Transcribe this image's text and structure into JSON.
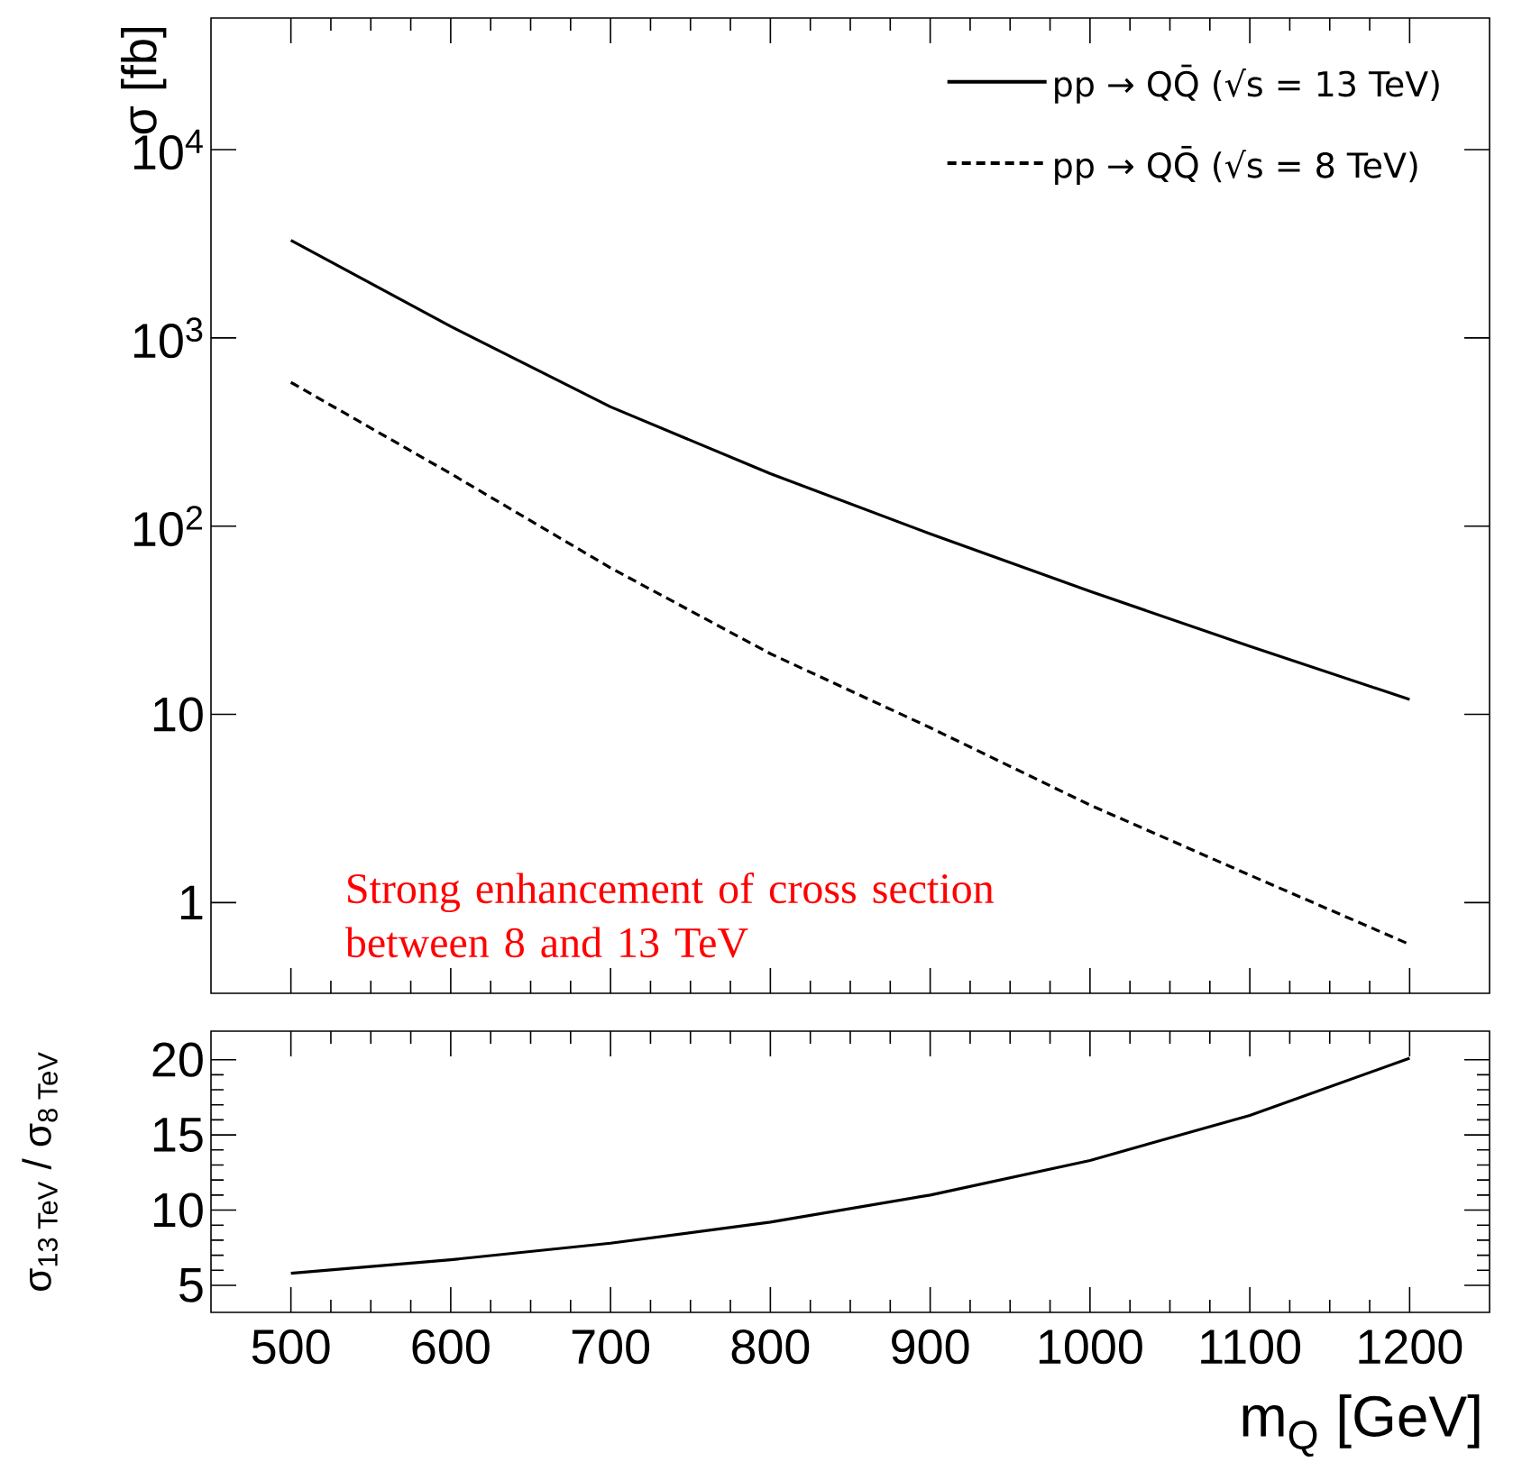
{
  "chart_data": [
    {
      "type": "line",
      "ylabel": "σ [fb]",
      "log": true,
      "x": [
        500,
        600,
        700,
        800,
        900,
        1000,
        1100,
        1200
      ],
      "xlim": [
        450,
        1250
      ],
      "xticks": [
        500,
        600,
        700,
        800,
        900,
        1000,
        1100,
        1200
      ],
      "ylim": [
        0.33,
        50000
      ],
      "yticks": [
        1,
        10,
        {
          "value": 100,
          "label": "10$^{2}$"
        },
        {
          "value": 1000,
          "label": "10$^{3}$"
        },
        {
          "value": 10000,
          "label": "10$^{4}$"
        }
      ],
      "tick_labels": "y",
      "legend": "top right",
      "series": [
        {
          "name": "pp → QQ̄ (√s = 13 TeV)",
          "color": "#000000",
          "line_style": "solid",
          "values": [
            3300,
            1150,
            430,
            190,
            91,
            45,
            23,
            12
          ]
        },
        {
          "name": "pp → QQ̄ (√s = 8 TeV)",
          "color": "#000000",
          "line_style": "dashed",
          "values": [
            580,
            190,
            60,
            21,
            8.5,
            3.3,
            1.4,
            0.6
          ]
        }
      ],
      "annotations": [
        "Strong enhancement of cross section between 8 and  13 TeV"
      ]
    },
    {
      "type": "line",
      "xlabel": "m$_{Q}$ [GeV]",
      "ylabel": "σ$_{13 TeV}$ / σ$_{8 TeV}$",
      "x": [
        500,
        600,
        700,
        800,
        900,
        1000,
        1100,
        1200
      ],
      "xlim": [
        450,
        1250
      ],
      "xticks": [
        500,
        600,
        700,
        800,
        900,
        1000,
        1100,
        1200
      ],
      "ylim": [
        3.2,
        21.9
      ],
      "yticks": [
        5,
        10,
        15,
        20
      ],
      "series": [
        {
          "color": "#000000",
          "line_style": "solid",
          "values": [
            5.8,
            6.7,
            7.8,
            9.2,
            11,
            13.3,
            16.3,
            20.1
          ]
        }
      ]
    }
  ]
}
